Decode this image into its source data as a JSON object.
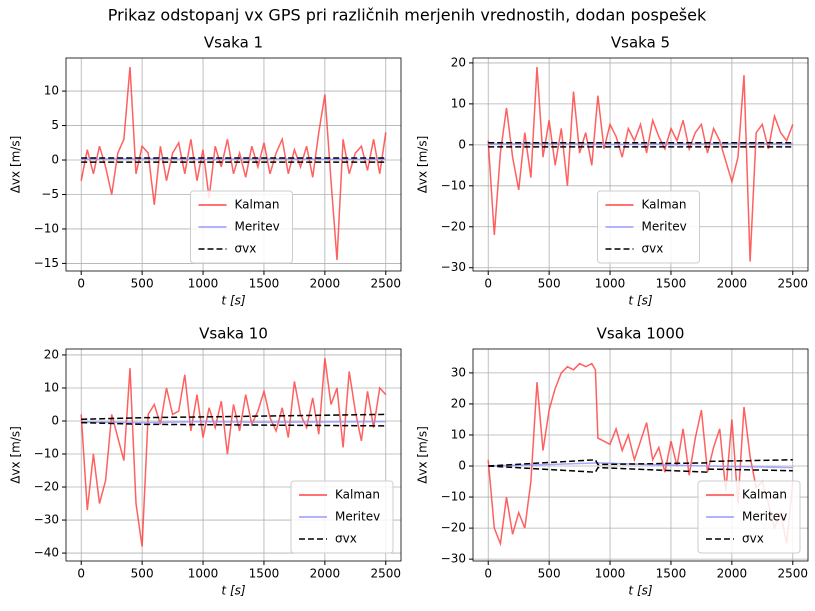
{
  "title": "Prikaz odstopanj vx GPS pri različnih merjenih vrednostih, dodan pospešek",
  "chart_data": [
    {
      "type": "line",
      "title": "Vsaka 1",
      "xlabel": "t [s]",
      "ylabel": "Δvx [m/s]",
      "xlim": [
        -125,
        2625
      ],
      "xticks": [
        0,
        500,
        1000,
        1500,
        2000,
        2500
      ],
      "ylim": [
        -16.1,
        14.8
      ],
      "yticks": [
        {
          "value": -15,
          "label": "−15"
        },
        {
          "value": -10,
          "label": "−10"
        },
        {
          "value": -5,
          "label": "−5"
        },
        0,
        5,
        10
      ],
      "grid": true,
      "legend": "lower center",
      "series": [
        {
          "name": "Kalman",
          "color": "#ff4444",
          "linestyle": "solid",
          "x": [
            0,
            50,
            100,
            150,
            200,
            250,
            300,
            350,
            400,
            450,
            500,
            550,
            600,
            650,
            700,
            750,
            800,
            850,
            900,
            950,
            1000,
            1050,
            1100,
            1150,
            1200,
            1250,
            1300,
            1350,
            1400,
            1450,
            1500,
            1550,
            1600,
            1650,
            1700,
            1750,
            1800,
            1850,
            1900,
            1950,
            2000,
            2050,
            2100,
            2150,
            2200,
            2250,
            2300,
            2350,
            2400,
            2450,
            2500
          ],
          "values": [
            -3,
            1.5,
            -2,
            2,
            -1,
            -5,
            1,
            3,
            13.5,
            -2,
            2,
            1,
            -6.5,
            2,
            -3,
            1,
            2.5,
            -2,
            3,
            -3,
            1.5,
            -5.5,
            2,
            -1,
            3,
            -2,
            1,
            -2.5,
            2,
            -1,
            2.5,
            -2,
            1,
            3,
            -2,
            1.5,
            -1,
            2,
            -2.5,
            4,
            9.5,
            -3,
            -14.5,
            3,
            -2,
            1,
            2,
            -1.5,
            3,
            -2,
            4
          ]
        },
        {
          "name": "Meritev",
          "color": "#9999ff",
          "linestyle": "solid",
          "x": [
            0,
            500,
            1000,
            1500,
            2000,
            2500
          ],
          "values": [
            0.1,
            0.2,
            0.1,
            0.2,
            0.1,
            0.1
          ]
        },
        {
          "name": "σvx",
          "color": "#000000",
          "linestyle": "dashed",
          "x": [
            0,
            2500,
            null,
            0,
            2500
          ],
          "values": [
            0.3,
            0.3,
            null,
            -0.3,
            -0.3
          ]
        }
      ]
    },
    {
      "type": "line",
      "title": "Vsaka 5",
      "xlabel": "t [s]",
      "ylabel": "Δvx [m/s]",
      "xlim": [
        -125,
        2625
      ],
      "xticks": [
        0,
        500,
        1000,
        1500,
        2000,
        2500
      ],
      "ylim": [
        -30.8,
        21.2
      ],
      "yticks": [
        {
          "value": -30,
          "label": "−30"
        },
        {
          "value": -20,
          "label": "−20"
        },
        {
          "value": -10,
          "label": "−10"
        },
        0,
        10,
        20
      ],
      "grid": true,
      "legend": "lower center",
      "series": [
        {
          "name": "Kalman",
          "color": "#ff4444",
          "linestyle": "solid",
          "x": [
            0,
            50,
            100,
            150,
            200,
            250,
            300,
            350,
            400,
            450,
            500,
            550,
            600,
            650,
            700,
            750,
            800,
            850,
            900,
            950,
            1000,
            1050,
            1100,
            1150,
            1200,
            1250,
            1300,
            1350,
            1400,
            1450,
            1500,
            1550,
            1600,
            1650,
            1700,
            1750,
            1800,
            1850,
            1900,
            1950,
            2000,
            2050,
            2100,
            2150,
            2200,
            2250,
            2300,
            2350,
            2400,
            2450,
            2500
          ],
          "values": [
            1,
            -22,
            -2,
            9,
            -3,
            -11,
            3,
            -8,
            19,
            -3,
            6,
            -5,
            4,
            -10,
            13,
            -2,
            3,
            -5,
            12,
            -1,
            5,
            2,
            -3,
            4,
            1,
            5,
            -2,
            6,
            2,
            -1,
            4,
            1,
            6,
            -1,
            3,
            5,
            -2,
            4,
            1,
            -4,
            -9,
            -3,
            17,
            -28.5,
            3,
            5,
            -1,
            7,
            3,
            1,
            5
          ]
        },
        {
          "name": "Meritev",
          "color": "#9999ff",
          "linestyle": "solid",
          "x": [
            0,
            500,
            1000,
            1500,
            2000,
            2500
          ],
          "values": [
            0.2,
            0.3,
            0.1,
            0.2,
            0.3,
            0.2
          ]
        },
        {
          "name": "σvx",
          "color": "#000000",
          "linestyle": "dashed",
          "x": [
            0,
            2500,
            null,
            0,
            2500
          ],
          "values": [
            0.5,
            0.5,
            null,
            -0.5,
            -0.5
          ]
        }
      ]
    },
    {
      "type": "line",
      "title": "Vsaka 10",
      "xlabel": "t [s]",
      "ylabel": "Δvx [m/s]",
      "xlim": [
        -125,
        2625
      ],
      "xticks": [
        0,
        500,
        1000,
        1500,
        2000,
        2500
      ],
      "ylim": [
        -42.4,
        21.8
      ],
      "yticks": [
        {
          "value": -40,
          "label": "−40"
        },
        {
          "value": -30,
          "label": "−30"
        },
        {
          "value": -20,
          "label": "−20"
        },
        {
          "value": -10,
          "label": "−10"
        },
        0,
        10,
        20
      ],
      "grid": true,
      "legend": "lower right",
      "series": [
        {
          "name": "Kalman",
          "color": "#ff4444",
          "linestyle": "solid",
          "x": [
            0,
            50,
            100,
            150,
            200,
            250,
            300,
            350,
            400,
            450,
            500,
            550,
            600,
            650,
            700,
            750,
            800,
            850,
            900,
            950,
            1000,
            1050,
            1100,
            1150,
            1200,
            1250,
            1300,
            1350,
            1400,
            1450,
            1500,
            1550,
            1600,
            1650,
            1700,
            1750,
            1800,
            1850,
            1900,
            1950,
            2000,
            2050,
            2100,
            2150,
            2200,
            2250,
            2300,
            2350,
            2400,
            2450,
            2500
          ],
          "values": [
            2,
            -27,
            -10,
            -25,
            -18,
            2,
            -5,
            -12,
            16,
            -25,
            -38,
            2,
            5,
            -1,
            10,
            2,
            3,
            14,
            -3,
            8,
            -5,
            4,
            -2,
            6,
            -10,
            5,
            -3,
            8,
            -1,
            3,
            9,
            1,
            -3,
            4,
            -5,
            12,
            2,
            -2,
            7,
            -4,
            19,
            5,
            10,
            -8,
            15,
            3,
            -6,
            9,
            -2,
            10,
            8
          ]
        },
        {
          "name": "Meritev",
          "color": "#9999ff",
          "linestyle": "solid",
          "x": [
            0,
            500,
            1000,
            1500,
            2000,
            2500
          ],
          "values": [
            -0.3,
            -0.5,
            -0.2,
            -0.4,
            -0.3,
            -0.2
          ]
        },
        {
          "name": "σvx",
          "color": "#000000",
          "linestyle": "dashed",
          "x": [
            0,
            500,
            2500,
            null,
            0,
            500,
            2500
          ],
          "values": [
            0.5,
            1,
            2,
            null,
            -0.5,
            -1,
            -1.5
          ]
        }
      ]
    },
    {
      "type": "line",
      "title": "Vsaka 1000",
      "xlabel": "t [s]",
      "ylabel": "Δvx [m/s]",
      "xlim": [
        -125,
        2625
      ],
      "xticks": [
        0,
        500,
        1000,
        1500,
        2000,
        2500
      ],
      "ylim": [
        -30.6,
        37.7
      ],
      "yticks": [
        {
          "value": -30,
          "label": "−30"
        },
        {
          "value": -20,
          "label": "−20"
        },
        {
          "value": -10,
          "label": "−10"
        },
        0,
        10,
        20,
        30
      ],
      "grid": true,
      "legend": "lower right",
      "series": [
        {
          "name": "Kalman",
          "color": "#ff4444",
          "linestyle": "solid",
          "x": [
            0,
            50,
            100,
            150,
            200,
            250,
            300,
            350,
            400,
            450,
            500,
            550,
            600,
            650,
            700,
            750,
            800,
            850,
            880,
            900,
            950,
            1000,
            1050,
            1100,
            1150,
            1200,
            1250,
            1300,
            1350,
            1400,
            1450,
            1500,
            1550,
            1600,
            1650,
            1700,
            1750,
            1800,
            1850,
            1900,
            1950,
            2000,
            2050,
            2100,
            2150,
            2200,
            2250,
            2300,
            2350,
            2400,
            2450,
            2500
          ],
          "values": [
            2,
            -20,
            -25,
            -10,
            -22,
            -15,
            -20,
            -5,
            27,
            5,
            18,
            25,
            30,
            32,
            31,
            33,
            32,
            33,
            31,
            9,
            8,
            7,
            12,
            5,
            10,
            2,
            8,
            14,
            2,
            6,
            -2,
            8,
            0,
            12,
            -3,
            9,
            18,
            -2,
            6,
            12,
            -8,
            15,
            -12,
            19,
            3,
            -7,
            -5,
            -12,
            -20,
            -15,
            -25,
            -5
          ]
        },
        {
          "name": "Meritev",
          "color": "#9999ff",
          "linestyle": "solid",
          "x": [
            0,
            500,
            900,
            1300,
            1800,
            2500
          ],
          "values": [
            0,
            0.5,
            1,
            0.5,
            0,
            -0.5
          ]
        },
        {
          "name": "σvx",
          "color": "#000000",
          "linestyle": "dashed",
          "x": [
            0,
            880,
            900,
            1800,
            1810,
            2500,
            null,
            0,
            880,
            900,
            1800,
            1810,
            2500
          ],
          "values": [
            0,
            2,
            0.5,
            1,
            1.5,
            2,
            null,
            0,
            -2,
            -0.5,
            -2,
            -1,
            -1.5
          ]
        }
      ]
    }
  ]
}
